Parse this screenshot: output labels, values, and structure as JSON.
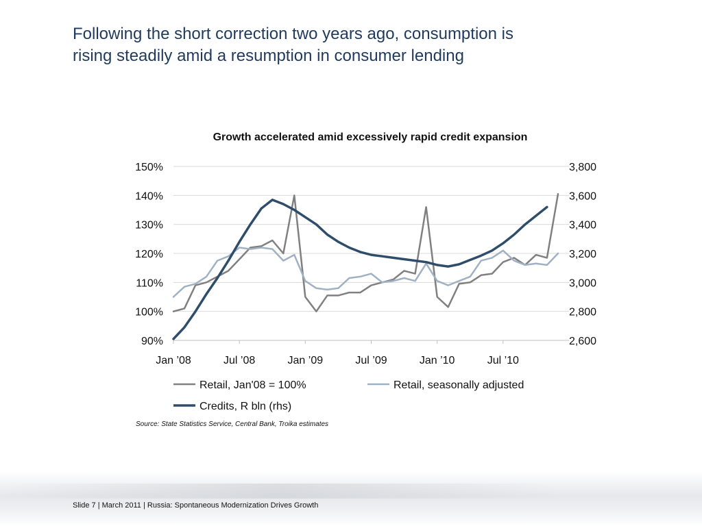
{
  "slide": {
    "title_line1": "Following the short correction two years ago, consumption is",
    "title_line2": "rising steadily amid a resumption in consumer lending",
    "source": "Source: State Statistics Service, Central Bank, Troika estimates",
    "footer": {
      "slide_label": "Slide 7",
      "separator": "  | ",
      "date": "March 2011",
      "separator2": " | ",
      "deck_title": "Russia: Spontaneous Modernization Drives Growth"
    }
  },
  "chart_data": {
    "type": "line",
    "title": "Growth accelerated amid excessively rapid credit expansion",
    "x_tick_labels": [
      "Jan ’08",
      "Jul ’08",
      "Jan ’09",
      "Jul ’09",
      "Jan ’10",
      "Jul ’10"
    ],
    "x_tick_month_index": [
      0,
      6,
      12,
      18,
      24,
      30
    ],
    "x_range": [
      "2008-01",
      "2011-01"
    ],
    "y_left": {
      "ticks": [
        90,
        100,
        110,
        120,
        130,
        140,
        150
      ],
      "tick_labels": [
        "90%",
        "100%",
        "110%",
        "120%",
        "130%",
        "140%",
        "150%"
      ],
      "range": [
        90,
        150
      ]
    },
    "y_right": {
      "ticks": [
        2600,
        2800,
        3000,
        3200,
        3400,
        3600,
        3800
      ],
      "tick_labels": [
        "2,600",
        "2,800",
        "3,000",
        "3,200",
        "3,400",
        "3,600",
        "3,800"
      ],
      "range": [
        2600,
        3800
      ]
    },
    "grid": "horizontal",
    "legend_position": "bottom",
    "series": [
      {
        "name": "Retail, Jan'08 = 100%",
        "axis": "left",
        "color": "#808080",
        "values": [
          100,
          101,
          109,
          110,
          112,
          114,
          118,
          122,
          122.5,
          124.5,
          120,
          140,
          105,
          100,
          105.5,
          105.5,
          106.5,
          106.5,
          109,
          110,
          111,
          114,
          113,
          136,
          105,
          101.5,
          109.5,
          110,
          112.5,
          113,
          117,
          118.5,
          116,
          119.5,
          118.5,
          140.5
        ]
      },
      {
        "name": "Retail, seasonally adjusted",
        "axis": "left",
        "color": "#9fb1c2",
        "values": [
          105,
          108.5,
          109.5,
          112,
          117.5,
          119,
          122,
          121.5,
          122,
          121.5,
          117.5,
          119.5,
          110.5,
          108,
          107.5,
          108,
          111.5,
          112,
          113,
          110,
          110.5,
          111.5,
          110.5,
          116.5,
          110.5,
          109,
          110.5,
          112,
          117.5,
          118.5,
          121,
          117.5,
          116,
          116.5,
          116,
          120
        ]
      },
      {
        "name": "Credits, R bln (rhs)",
        "axis": "right",
        "color": "#2f4d6b",
        "values": [
          2610,
          2690,
          2800,
          2920,
          3030,
          3150,
          3280,
          3400,
          3510,
          3570,
          3540,
          3500,
          3450,
          3400,
          3330,
          3280,
          3240,
          3210,
          3190,
          3180,
          3170,
          3160,
          3150,
          3140,
          3120,
          3110,
          3125,
          3155,
          3185,
          3220,
          3270,
          3330,
          3400,
          3460,
          3520
        ]
      }
    ]
  }
}
